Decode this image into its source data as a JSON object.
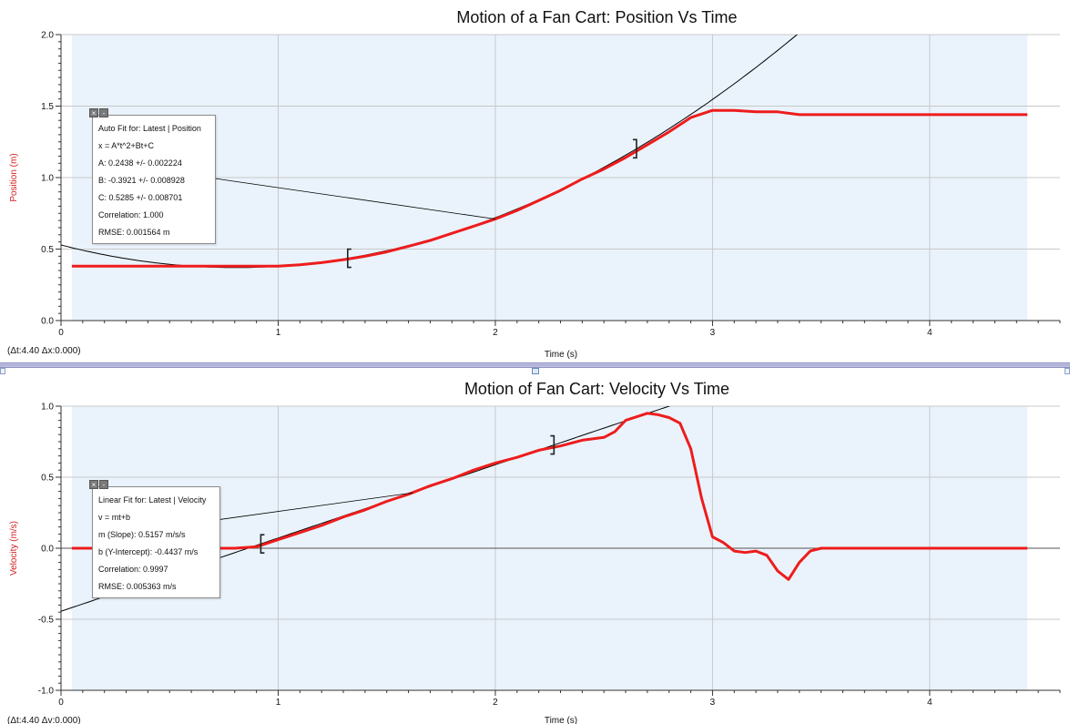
{
  "colors": {
    "plot_bg": "#eaf3fc",
    "data_line": "#ee1c1c",
    "fit_line": "#000000",
    "grid": "#c8c8c8",
    "ylabel": "#d42020"
  },
  "divider_icon": "pane-splitter-handle",
  "charts": [
    {
      "type": "line",
      "title": "Motion of a Fan Cart: Position Vs Time",
      "xlabel": "Time (s)",
      "ylabel": "Position (m)",
      "status": "(Δt:4.40 Δx:0.000)",
      "xlim": [
        0,
        4.6
      ],
      "ylim": [
        0,
        2
      ],
      "x_ticks": [
        "0",
        "1",
        "2",
        "3",
        "4"
      ],
      "y_ticks": [
        "0.0",
        "0.5",
        "1.0",
        "1.5",
        "2.0"
      ],
      "y_tick_values": [
        0,
        0.5,
        1,
        1.5,
        2
      ],
      "shaded_x": [
        0.05,
        4.45
      ],
      "bracket_x": [
        1.32,
        2.65
      ],
      "series": [
        {
          "x": [
            0.05,
            0.5,
            1.0,
            1.1,
            1.2,
            1.32,
            1.4,
            1.5,
            1.6,
            1.7,
            1.8,
            1.9,
            2.0,
            2.1,
            2.2,
            2.3,
            2.4,
            2.5,
            2.6,
            2.7,
            2.8,
            2.9,
            3.0,
            3.1,
            3.2,
            3.3,
            3.4,
            3.6,
            4.0,
            4.45
          ],
          "y": [
            0.38,
            0.38,
            0.38,
            0.39,
            0.405,
            0.43,
            0.45,
            0.48,
            0.52,
            0.56,
            0.61,
            0.66,
            0.71,
            0.77,
            0.84,
            0.91,
            0.99,
            1.06,
            1.14,
            1.23,
            1.32,
            1.42,
            1.47,
            1.47,
            1.46,
            1.46,
            1.44,
            1.44,
            1.44,
            1.44
          ]
        }
      ],
      "fit": {
        "kind": "quadratic",
        "A": 0.2438,
        "B": -0.3921,
        "C": 0.5285,
        "x_range": [
          0,
          3.4
        ],
        "leader": {
          "from": [
            0.68,
            1.0
          ],
          "to": [
            2.0,
            0.71
          ]
        }
      },
      "fit_box": {
        "lines": [
          "Auto Fit for: Latest | Position",
          "x = A*t^2+Bt+C",
          "A: 0.2438 +/- 0.002224",
          "B: -0.3921 +/- 0.008928",
          "C: 0.5285 +/- 0.008701",
          "Correlation: 1.000",
          "RMSE: 0.001564 m"
        ],
        "close_icon": "close-icon",
        "minimize_icon": "minimize-icon"
      }
    },
    {
      "type": "line",
      "title": "Motion of Fan Cart: Velocity Vs Time",
      "xlabel": "Time (s)",
      "ylabel": "Velocity (m/s)",
      "status": "(Δt:4.40 Δv:0.000)",
      "xlim": [
        0,
        4.6
      ],
      "ylim": [
        -1,
        1
      ],
      "x_ticks": [
        "0",
        "1",
        "2",
        "3",
        "4"
      ],
      "y_ticks": [
        "-1.0",
        "-0.5",
        "0.0",
        "0.5",
        "1.0"
      ],
      "y_tick_values": [
        -1,
        -0.5,
        0,
        0.5,
        1
      ],
      "shaded_x": [
        0.05,
        4.45
      ],
      "bracket_x": [
        0.92,
        2.27
      ],
      "series": [
        {
          "x": [
            0.05,
            0.5,
            0.8,
            0.9,
            1.0,
            1.1,
            1.2,
            1.3,
            1.4,
            1.5,
            1.6,
            1.7,
            1.8,
            1.9,
            2.0,
            2.1,
            2.2,
            2.3,
            2.4,
            2.5,
            2.55,
            2.6,
            2.7,
            2.75,
            2.8,
            2.85,
            2.9,
            2.95,
            3.0,
            3.05,
            3.1,
            3.15,
            3.2,
            3.25,
            3.3,
            3.35,
            3.4,
            3.45,
            3.5,
            3.6,
            3.8,
            4.0,
            4.2,
            4.45
          ],
          "y": [
            0.0,
            0.0,
            0.0,
            0.01,
            0.06,
            0.11,
            0.16,
            0.22,
            0.27,
            0.33,
            0.38,
            0.44,
            0.49,
            0.55,
            0.6,
            0.64,
            0.69,
            0.72,
            0.76,
            0.78,
            0.82,
            0.9,
            0.95,
            0.94,
            0.92,
            0.88,
            0.7,
            0.35,
            0.08,
            0.04,
            -0.02,
            -0.03,
            -0.02,
            -0.05,
            -0.16,
            -0.22,
            -0.1,
            -0.02,
            0.0,
            0.0,
            0.0,
            0.0,
            0.0,
            0.0
          ]
        }
      ],
      "fit": {
        "kind": "linear",
        "m": 0.5157,
        "b": -0.4437,
        "x_range": [
          0,
          2.82
        ],
        "leader": {
          "from": [
            0.72,
            0.2
          ],
          "to": [
            1.62,
            0.39
          ]
        }
      },
      "fit_box": {
        "lines": [
          "Linear Fit for: Latest | Velocity",
          "v = mt+b",
          "m (Slope): 0.5157 m/s/s",
          "b (Y-Intercept): -0.4437 m/s",
          "Correlation: 0.9997",
          "RMSE: 0.005363 m/s"
        ],
        "close_icon": "close-icon",
        "minimize_icon": "minimize-icon"
      }
    }
  ]
}
